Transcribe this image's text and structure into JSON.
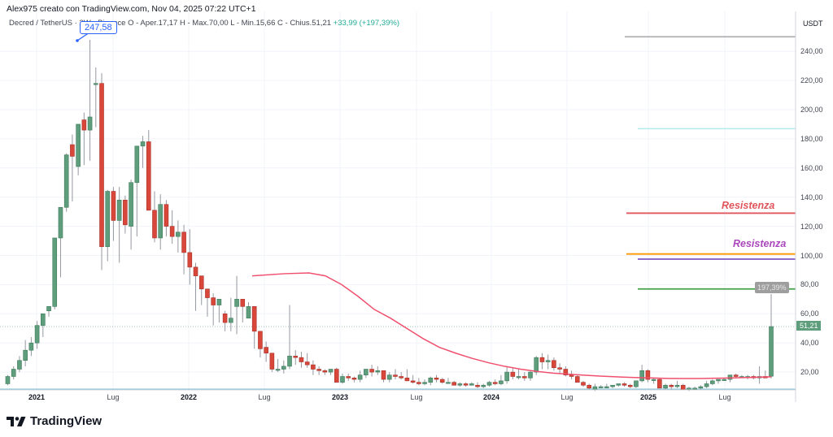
{
  "header": {
    "caption": "Alex975 creato con TradingView.com, Nov 04, 2025 07:22 UTC+1"
  },
  "legend": {
    "symbol": "Decred / TetherUS · 2W · Binance",
    "ohlc": "O - Aper.17,17  H - Max.70,00  L - Min.15,66  C - Chius.51,21",
    "change": "+33,99 (+197,39%)"
  },
  "annotations": {
    "peak_label": "247,58",
    "pct_tooltip": "197,39%",
    "last_price_badge": "51,21",
    "resistance_1": "Resistenza",
    "resistance_2": "Resistenza"
  },
  "brand": {
    "logo_text": "TradingView"
  },
  "colors": {
    "up": "#5e9e7c",
    "down": "#d9463a",
    "ma": "#f0506e",
    "res1": "#e0555b",
    "res2_label": "#ab47bc",
    "orange": "#ff9800",
    "purple": "#7e57c2",
    "green_line": "#43a047",
    "cyan_line": "#b2ebf2",
    "grey_line": "#b0b0b0"
  },
  "chart_data": {
    "type": "candlestick",
    "title": "Decred / TetherUS · 2W · Binance",
    "xlabel": "",
    "ylabel": "USDT",
    "ylim": [
      0,
      250
    ],
    "y_ticks": [
      "240,00",
      "220,00",
      "200,00",
      "180,00",
      "160,00",
      "140,00",
      "120,00",
      "100,00",
      "80,00",
      "60,00",
      "40,00",
      "20,00"
    ],
    "y_tick_values": [
      240,
      220,
      200,
      180,
      160,
      140,
      120,
      100,
      80,
      60,
      40,
      20
    ],
    "x_ticks": [
      {
        "label": "2021",
        "x": 45,
        "year": true
      },
      {
        "label": "Lug",
        "x": 139,
        "year": false
      },
      {
        "label": "2022",
        "x": 232,
        "year": true
      },
      {
        "label": "Lug",
        "x": 325,
        "year": false
      },
      {
        "label": "2023",
        "x": 418,
        "year": true
      },
      {
        "label": "Lug",
        "x": 512,
        "year": false
      },
      {
        "label": "2024",
        "x": 604,
        "year": true
      },
      {
        "label": "Lug",
        "x": 697,
        "year": false
      },
      {
        "label": "2025",
        "x": 797,
        "year": true
      },
      {
        "label": "Lug",
        "x": 891,
        "year": false
      }
    ],
    "last": {
      "open": 17.17,
      "high": 70.0,
      "low": 15.66,
      "close": 51.21,
      "change": 33.99,
      "change_pct": 197.39
    },
    "horizontal_lines": [
      {
        "name": "grey-level",
        "price": 250,
        "x_start": 768,
        "color": "#b0b0b0"
      },
      {
        "name": "cyan-level",
        "price": 187,
        "x_start": 784,
        "color": "#b2ebf2"
      },
      {
        "name": "resistance-1",
        "price": 129,
        "x_start": 770,
        "color": "#e0555b",
        "label": "Resistenza"
      },
      {
        "name": "orange-level",
        "price": 101,
        "x_start": 770,
        "color": "#ff9800"
      },
      {
        "name": "resistance-2",
        "price": 97.5,
        "x_start": 784,
        "color": "#7e57c2",
        "label": "Resistenza"
      },
      {
        "name": "green-level",
        "price": 77,
        "x_start": 784,
        "color": "#43a047"
      }
    ],
    "candles": [
      [
        12,
        18,
        11,
        17
      ],
      [
        17,
        24,
        15,
        22
      ],
      [
        22,
        31,
        20,
        28
      ],
      [
        28,
        42,
        24,
        35
      ],
      [
        35,
        44,
        31,
        40
      ],
      [
        40,
        55,
        36,
        52
      ],
      [
        52,
        58,
        44,
        60
      ],
      [
        62,
        64,
        58,
        65
      ],
      [
        65,
        106,
        63,
        112
      ],
      [
        112,
        132,
        85,
        133
      ],
      [
        133,
        170,
        130,
        169
      ],
      [
        176,
        183,
        137,
        168
      ],
      [
        161,
        180,
        155,
        190
      ],
      [
        193,
        198,
        162,
        186
      ],
      [
        186,
        248,
        165,
        195
      ],
      [
        218,
        229,
        188,
        218
      ],
      [
        218,
        225,
        90,
        106
      ],
      [
        106,
        145,
        96,
        144
      ],
      [
        144,
        147,
        110,
        124
      ],
      [
        124,
        147,
        95,
        138
      ],
      [
        138,
        141,
        115,
        121
      ],
      [
        120,
        152,
        104,
        150
      ],
      [
        150,
        170,
        113,
        175
      ],
      [
        175,
        182,
        160,
        178
      ],
      [
        178,
        186,
        135,
        131
      ],
      [
        131,
        144,
        109,
        112
      ],
      [
        112,
        142,
        104,
        135
      ],
      [
        135,
        138,
        113,
        120
      ],
      [
        120,
        131,
        108,
        113
      ],
      [
        113,
        124,
        102,
        116
      ],
      [
        116,
        121,
        87,
        102
      ],
      [
        102,
        118,
        80,
        92
      ],
      [
        92,
        95,
        62,
        86
      ],
      [
        86,
        81,
        66,
        77
      ],
      [
        77,
        74,
        58,
        71
      ],
      [
        71,
        74,
        52,
        66
      ],
      [
        66,
        63,
        54,
        70
      ],
      [
        60,
        62,
        48,
        54
      ],
      [
        54,
        71,
        48,
        57
      ],
      [
        65,
        86,
        46,
        70
      ],
      [
        70,
        66,
        54,
        65
      ],
      [
        57,
        68,
        58,
        65
      ],
      [
        65,
        64,
        36,
        48
      ],
      [
        48,
        48,
        30,
        36
      ],
      [
        37,
        41,
        27,
        33
      ],
      [
        33,
        31,
        20,
        22
      ],
      [
        22,
        29,
        20,
        22
      ],
      [
        22,
        28,
        19,
        24
      ],
      [
        24,
        66,
        22,
        31
      ],
      [
        31,
        35,
        25,
        30
      ],
      [
        30,
        34,
        23,
        27
      ],
      [
        27,
        33,
        23,
        25
      ],
      [
        25,
        28,
        18,
        22
      ],
      [
        22,
        24,
        18,
        21
      ],
      [
        21,
        22,
        18,
        20
      ],
      [
        20,
        22,
        18,
        22
      ],
      [
        22,
        23,
        14,
        13
      ],
      [
        13,
        19,
        12,
        17
      ],
      [
        17,
        19,
        14,
        16
      ],
      [
        16,
        17,
        13,
        15
      ],
      [
        15,
        21,
        13,
        18
      ],
      [
        18,
        21,
        16,
        22
      ],
      [
        22,
        25,
        17,
        20
      ],
      [
        20,
        24,
        18,
        21
      ],
      [
        21,
        20,
        13,
        15
      ],
      [
        15,
        20,
        13,
        18
      ],
      [
        18,
        22,
        15,
        17
      ],
      [
        17,
        20,
        15,
        16
      ],
      [
        16,
        22,
        14,
        14
      ],
      [
        14,
        18,
        12,
        13
      ],
      [
        13,
        16,
        11,
        12
      ],
      [
        12,
        15,
        11,
        13
      ],
      [
        13,
        17,
        11,
        16
      ],
      [
        16,
        18,
        13,
        15
      ],
      [
        15,
        16,
        12,
        13
      ],
      [
        13,
        16,
        12,
        13
      ],
      [
        13,
        14,
        11,
        11
      ],
      [
        11,
        13,
        10,
        12
      ],
      [
        12,
        13,
        10,
        11
      ],
      [
        11,
        13,
        11,
        12
      ],
      [
        11,
        13,
        9,
        10
      ],
      [
        10,
        12,
        9,
        11
      ],
      [
        11,
        14,
        10,
        13
      ],
      [
        13,
        15,
        11,
        12
      ],
      [
        12,
        18,
        11,
        14
      ],
      [
        14,
        24,
        12,
        20
      ],
      [
        20,
        23,
        15,
        17
      ],
      [
        17,
        22,
        15,
        17
      ],
      [
        17,
        20,
        14,
        16
      ],
      [
        16,
        21,
        14,
        20
      ],
      [
        20,
        31,
        18,
        30
      ],
      [
        30,
        33,
        22,
        27
      ],
      [
        27,
        32,
        22,
        28
      ],
      [
        28,
        30,
        21,
        23
      ],
      [
        23,
        26,
        19,
        22
      ],
      [
        22,
        24,
        17,
        18
      ],
      [
        18,
        21,
        15,
        17
      ],
      [
        17,
        18,
        13,
        13
      ],
      [
        13,
        14,
        10,
        11
      ],
      [
        11,
        12,
        8,
        9
      ],
      [
        8,
        12,
        7,
        10
      ],
      [
        10,
        11,
        9,
        10
      ],
      [
        10,
        12,
        9,
        10
      ],
      [
        10,
        11,
        9,
        11
      ],
      [
        11,
        12,
        10,
        12
      ],
      [
        12,
        13,
        10,
        11
      ],
      [
        11,
        12,
        9,
        10
      ],
      [
        10,
        14,
        9,
        14
      ],
      [
        14,
        25,
        13,
        21
      ],
      [
        21,
        22,
        13,
        15
      ],
      [
        15,
        16,
        12,
        15
      ],
      [
        15,
        16,
        11,
        9
      ],
      [
        9,
        12,
        8,
        11
      ],
      [
        11,
        12,
        8,
        10
      ],
      [
        10,
        14,
        9,
        11
      ],
      [
        11,
        12,
        9,
        8
      ],
      [
        8,
        10,
        7,
        9
      ],
      [
        9,
        10,
        8,
        9
      ],
      [
        9,
        11,
        8,
        10
      ],
      [
        10,
        14,
        9,
        12
      ],
      [
        12,
        15,
        11,
        14
      ],
      [
        14,
        15,
        12,
        15
      ],
      [
        15,
        16,
        14,
        15
      ],
      [
        15,
        18,
        13,
        18
      ],
      [
        18,
        19,
        16,
        17
      ],
      [
        17,
        18,
        16,
        17
      ],
      [
        17,
        18,
        15,
        17
      ],
      [
        17,
        18,
        15,
        16
      ],
      [
        16,
        24,
        12,
        17
      ],
      [
        17,
        21,
        16,
        16
      ],
      [
        17.17,
        70,
        15.66,
        51.21
      ]
    ],
    "moving_average": {
      "color": "#f0506e",
      "points": [
        [
          310,
          86
        ],
        [
          350,
          87.5
        ],
        [
          380,
          88
        ],
        [
          400,
          86
        ],
        [
          420,
          80
        ],
        [
          440,
          72
        ],
        [
          460,
          63
        ],
        [
          480,
          57
        ],
        [
          500,
          50
        ],
        [
          520,
          43
        ],
        [
          540,
          37
        ],
        [
          560,
          33
        ],
        [
          580,
          29.5
        ],
        [
          600,
          26.5
        ],
        [
          620,
          24
        ],
        [
          640,
          22
        ],
        [
          660,
          20.5
        ],
        [
          680,
          19.3
        ],
        [
          700,
          18.5
        ],
        [
          720,
          17.8
        ],
        [
          740,
          17.2
        ],
        [
          760,
          16.7
        ],
        [
          780,
          16.3
        ],
        [
          800,
          16
        ],
        [
          820,
          15.7
        ],
        [
          840,
          15.6
        ],
        [
          860,
          15.6
        ],
        [
          880,
          15.8
        ],
        [
          900,
          16
        ],
        [
          920,
          16.3
        ],
        [
          948,
          16.8
        ]
      ]
    }
  }
}
